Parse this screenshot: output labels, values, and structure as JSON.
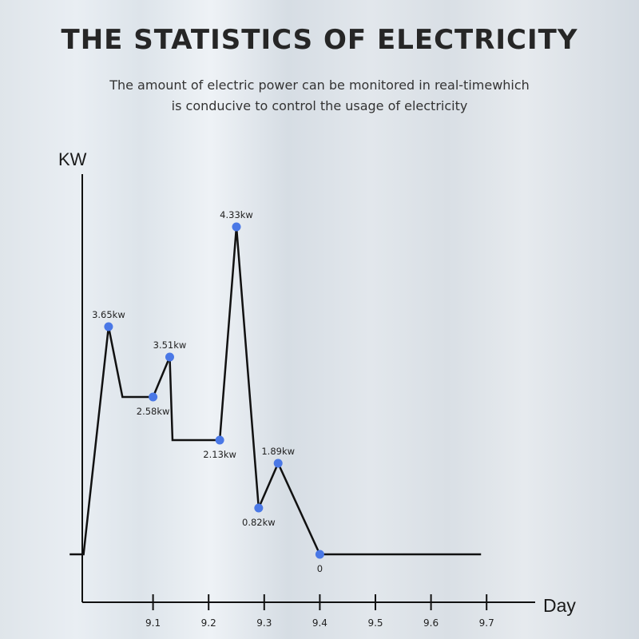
{
  "title": "THE STATISTICS OF ELECTRICITY",
  "subtitle_lines": [
    "The amount of electric power can be monitored in real-timewhich",
    "is conducive to control the usage of electricity"
  ],
  "chart_data": {
    "type": "line",
    "title": "THE STATISTICS OF ELECTRICITY",
    "xlabel": "Day",
    "ylabel": "KW",
    "x_ticks": [
      "9.1",
      "9.2",
      "9.3",
      "9.4",
      "9.5",
      "9.6",
      "9.7"
    ],
    "xlim": [
      8.97,
      9.8
    ],
    "grid": false,
    "line_color": "#111111",
    "marker_color": "#4a78e6",
    "points": [
      {
        "x": 8.95,
        "y": 0,
        "label": null
      },
      {
        "x": 8.975,
        "y": 0,
        "label": null
      },
      {
        "x": 9.02,
        "y": 3.65,
        "label": "3.65kw",
        "marker": true,
        "label_pos": "above"
      },
      {
        "x": 9.045,
        "y": 2.58,
        "label": null
      },
      {
        "x": 9.1,
        "y": 2.58,
        "label": "2.58kw",
        "marker": true,
        "label_pos": "below"
      },
      {
        "x": 9.13,
        "y": 3.51,
        "label": "3.51kw",
        "marker": true,
        "label_pos": "above"
      },
      {
        "x": 9.135,
        "y": 2.13,
        "label": null
      },
      {
        "x": 9.22,
        "y": 2.13,
        "label": "2.13kw",
        "marker": true,
        "label_pos": "below"
      },
      {
        "x": 9.25,
        "y": 4.33,
        "label": "4.33kw",
        "marker": true,
        "label_pos": "above"
      },
      {
        "x": 9.29,
        "y": 0.82,
        "label": "0.82kw",
        "marker": true,
        "label_pos": "below"
      },
      {
        "x": 9.325,
        "y": 1.89,
        "label": "1.89kw",
        "marker": true,
        "label_pos": "above"
      },
      {
        "x": 9.4,
        "y": 0,
        "label": "0",
        "marker": true,
        "label_pos": "below"
      },
      {
        "x": 9.69,
        "y": 0,
        "label": null
      }
    ]
  }
}
